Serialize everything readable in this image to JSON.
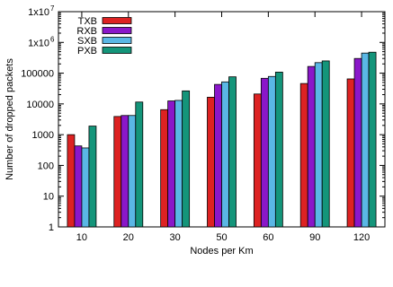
{
  "chart_data": {
    "type": "bar",
    "title": "",
    "xlabel": "Nodes per Km",
    "ylabel": "Number of dropped packets",
    "yscale": "log",
    "ylim": [
      1,
      10000000
    ],
    "grid": false,
    "legend_position": "top-left",
    "categories": [
      "10",
      "20",
      "30",
      "50",
      "60",
      "90",
      "120"
    ],
    "ytick_values": [
      1,
      10,
      100,
      1000,
      10000,
      100000,
      1000000,
      10000000
    ],
    "ytick_labels": [
      "1",
      "10",
      "100",
      "1000",
      "10000",
      "100000",
      "1x10",
      "1x10"
    ],
    "ytick_superscripts": [
      "",
      "",
      "",
      "",
      "",
      "",
      "6",
      "7"
    ],
    "series": [
      {
        "name": "TXB",
        "color": "#dd2222",
        "values": [
          1000,
          3900,
          6500,
          16500,
          21000,
          46000,
          65000
        ]
      },
      {
        "name": "RXB",
        "color": "#8a17c9",
        "values": [
          430,
          4200,
          12500,
          43000,
          68000,
          165000,
          300000
        ]
      },
      {
        "name": "SXB",
        "color": "#5ab7e5",
        "values": [
          370,
          4200,
          13000,
          52000,
          78000,
          220000,
          450000
        ]
      },
      {
        "name": "PXB",
        "color": "#14957a",
        "values": [
          1900,
          11500,
          26500,
          76000,
          108000,
          250000,
          480000
        ]
      }
    ]
  }
}
